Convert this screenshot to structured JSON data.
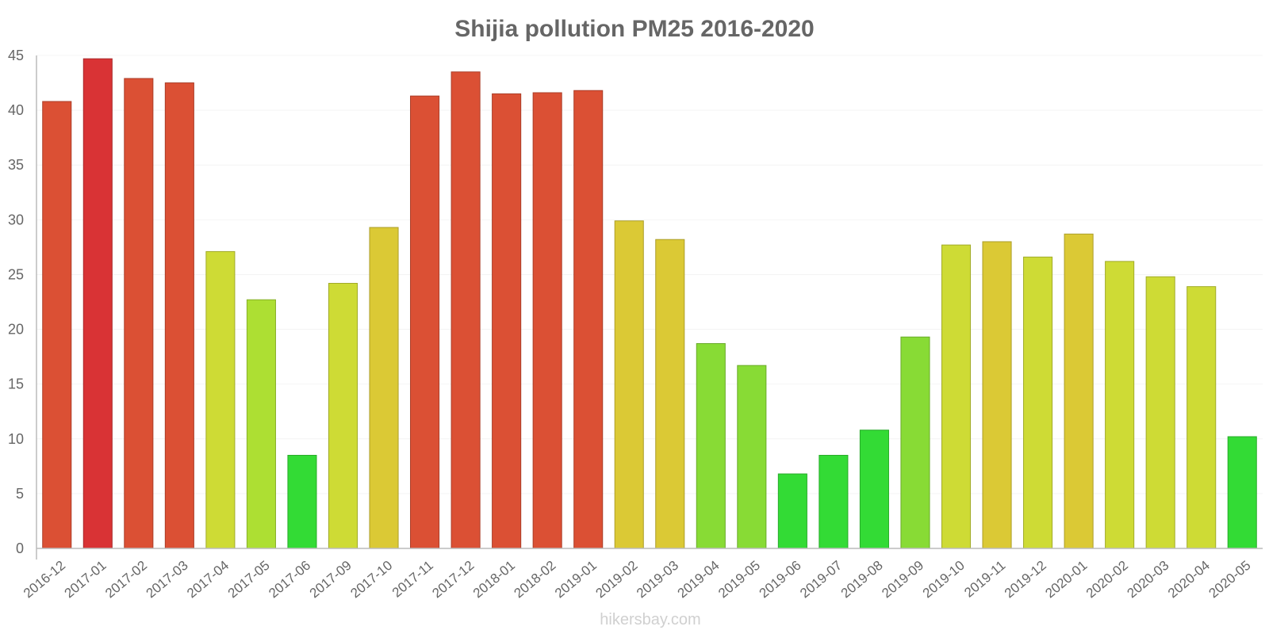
{
  "chart_data": {
    "type": "bar",
    "title": "Shijia pollution PM25 2016-2020",
    "xlabel": "",
    "ylabel": "",
    "ylim": [
      0,
      45
    ],
    "yticks": [
      0,
      5,
      10,
      15,
      20,
      25,
      30,
      35,
      40,
      45
    ],
    "grid": true,
    "categories": [
      "2016-12",
      "2017-01",
      "2017-02",
      "2017-03",
      "2017-04",
      "2017-05",
      "2017-06",
      "2017-09",
      "2017-10",
      "2017-11",
      "2017-12",
      "2018-01",
      "2018-02",
      "2019-01",
      "2019-02",
      "2019-03",
      "2019-04",
      "2019-05",
      "2019-06",
      "2019-07",
      "2019-08",
      "2019-09",
      "2019-10",
      "2019-11",
      "2019-12",
      "2020-01",
      "2020-02",
      "2020-03",
      "2020-04",
      "2020-05"
    ],
    "values": [
      40.8,
      44.7,
      42.9,
      42.5,
      27.1,
      22.7,
      8.5,
      24.2,
      29.3,
      41.3,
      43.5,
      41.5,
      41.6,
      41.8,
      29.9,
      28.2,
      18.7,
      16.7,
      6.8,
      8.5,
      10.8,
      19.3,
      27.7,
      28.0,
      26.6,
      28.7,
      26.2,
      24.8,
      23.9,
      10.2
    ],
    "colors": [
      "#db5034",
      "#d93335",
      "#db5034",
      "#db5034",
      "#cedb35",
      "#addf33",
      "#33db35",
      "#cedb35",
      "#dbc935",
      "#db5034",
      "#db5034",
      "#db5034",
      "#db5034",
      "#db5034",
      "#dbc935",
      "#dbc935",
      "#88db35",
      "#88db35",
      "#33db35",
      "#33db35",
      "#33db35",
      "#88db35",
      "#cedb35",
      "#dbc935",
      "#cedb35",
      "#dbc935",
      "#cedb35",
      "#cedb35",
      "#cedb35",
      "#33db35"
    ]
  },
  "watermark": "hikersbay.com"
}
